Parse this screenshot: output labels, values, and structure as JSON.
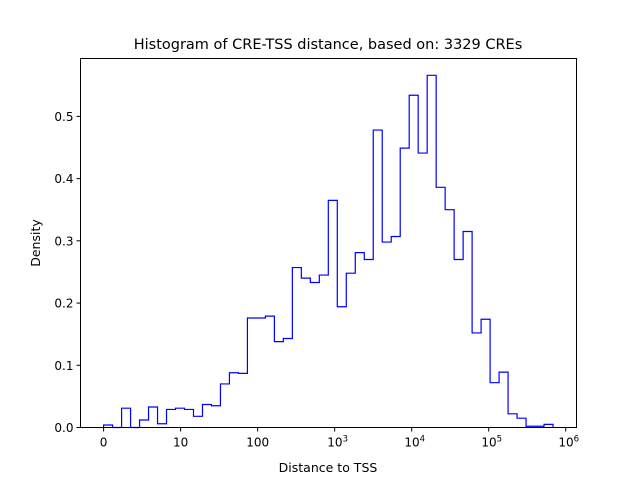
{
  "chart_data": {
    "type": "histogram-step",
    "title": "Histogram of CRE-TSS distance, based on: 3329 CREs",
    "xlabel": "Distance to TSS",
    "ylabel": "Density",
    "x_scale": "symlog (decades, 0 at origin)",
    "xlim_decades": [
      -0.3,
      6.14
    ],
    "ylim": [
      0,
      0.593
    ],
    "bin_start_decade": 0,
    "bin_width_decades": 0.1167,
    "density": [
      0.004,
      0.0,
      0.031,
      0.0,
      0.012,
      0.033,
      0.006,
      0.029,
      0.031,
      0.029,
      0.018,
      0.037,
      0.035,
      0.07,
      0.088,
      0.087,
      0.176,
      0.176,
      0.179,
      0.138,
      0.143,
      0.257,
      0.24,
      0.233,
      0.245,
      0.365,
      0.194,
      0.248,
      0.281,
      0.27,
      0.478,
      0.298,
      0.307,
      0.449,
      0.534,
      0.441,
      0.566,
      0.386,
      0.35,
      0.27,
      0.315,
      0.152,
      0.174,
      0.072,
      0.089,
      0.022,
      0.015,
      0.002,
      0.002,
      0.005
    ],
    "line_color": "#0000ff",
    "x_ticks": [
      {
        "decade": 0,
        "label": "0",
        "sup": ""
      },
      {
        "decade": 1,
        "label": "10",
        "sup": ""
      },
      {
        "decade": 2,
        "label": "100",
        "sup": ""
      },
      {
        "decade": 3,
        "label": "10",
        "sup": "3"
      },
      {
        "decade": 4,
        "label": "10",
        "sup": "4"
      },
      {
        "decade": 5,
        "label": "10",
        "sup": "5"
      },
      {
        "decade": 6,
        "label": "10",
        "sup": "6"
      }
    ],
    "y_ticks": [
      {
        "value": 0.0,
        "label": "0.0"
      },
      {
        "value": 0.1,
        "label": "0.1"
      },
      {
        "value": 0.2,
        "label": "0.2"
      },
      {
        "value": 0.3,
        "label": "0.3"
      },
      {
        "value": 0.4,
        "label": "0.4"
      },
      {
        "value": 0.5,
        "label": "0.5"
      }
    ],
    "grid": false,
    "legend": "none"
  }
}
